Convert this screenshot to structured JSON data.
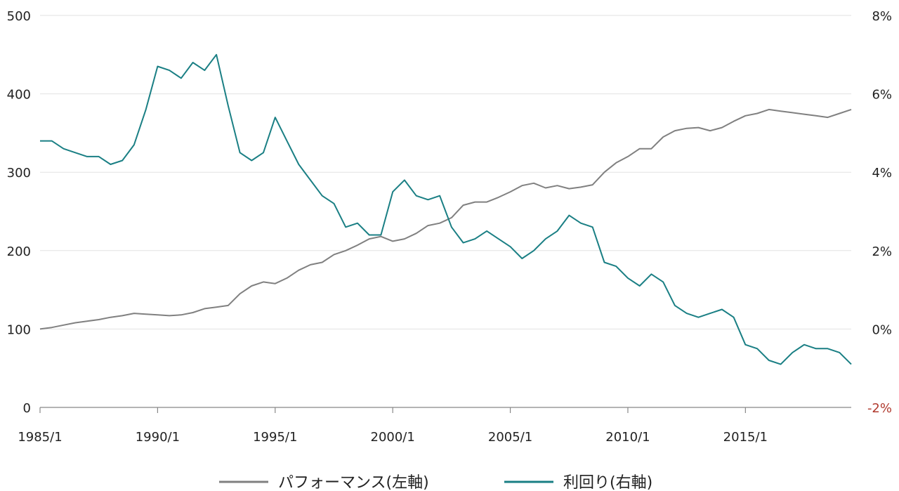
{
  "chart_data": {
    "type": "line",
    "xlabel": "",
    "ylabel": "",
    "x_range": [
      1985.0,
      2019.5
    ],
    "x_ticks": [
      "1985/1",
      "1990/1",
      "1995/1",
      "2000/1",
      "2005/1",
      "2010/1",
      "2015/1"
    ],
    "x_tick_values": [
      1985,
      1990,
      1995,
      2000,
      2005,
      2010,
      2015
    ],
    "y_left": {
      "range": [
        0,
        500
      ],
      "ticks": [
        "0",
        "100",
        "200",
        "300",
        "400",
        "500"
      ],
      "tick_values": [
        0,
        100,
        200,
        300,
        400,
        500
      ]
    },
    "y_right": {
      "range": [
        -2,
        8
      ],
      "ticks": [
        "-2%",
        "0%",
        "2%",
        "4%",
        "6%",
        "8%"
      ],
      "tick_values": [
        -2,
        0,
        2,
        4,
        6,
        8
      ],
      "tick_colors": [
        "#b03a2e",
        "#222222",
        "#222222",
        "#222222",
        "#222222",
        "#222222"
      ]
    },
    "grid": "horizontal",
    "legend_position": "bottom",
    "series": [
      {
        "name": "パフォーマンス(左軸)",
        "axis": "left",
        "color": "#808080",
        "x": [
          1985.0,
          1985.5,
          1986.0,
          1986.5,
          1987.0,
          1987.5,
          1988.0,
          1988.5,
          1989.0,
          1989.5,
          1990.0,
          1990.5,
          1991.0,
          1991.5,
          1992.0,
          1992.5,
          1993.0,
          1993.5,
          1994.0,
          1994.5,
          1995.0,
          1995.5,
          1996.0,
          1996.5,
          1997.0,
          1997.5,
          1998.0,
          1998.5,
          1999.0,
          1999.5,
          2000.0,
          2000.5,
          2001.0,
          2001.5,
          2002.0,
          2002.5,
          2003.0,
          2003.5,
          2004.0,
          2004.5,
          2005.0,
          2005.5,
          2006.0,
          2006.5,
          2007.0,
          2007.5,
          2008.0,
          2008.5,
          2009.0,
          2009.5,
          2010.0,
          2010.5,
          2011.0,
          2011.5,
          2012.0,
          2012.5,
          2013.0,
          2013.5,
          2014.0,
          2014.5,
          2015.0,
          2015.5,
          2016.0,
          2016.5,
          2017.0,
          2017.5,
          2018.0,
          2018.5,
          2019.0,
          2019.5
        ],
        "values": [
          100,
          102,
          105,
          108,
          110,
          112,
          115,
          117,
          120,
          119,
          118,
          117,
          118,
          121,
          126,
          128,
          130,
          145,
          155,
          160,
          158,
          165,
          175,
          182,
          185,
          195,
          200,
          207,
          215,
          218,
          212,
          215,
          222,
          232,
          235,
          242,
          258,
          262,
          262,
          268,
          275,
          283,
          286,
          280,
          283,
          279,
          281,
          284,
          300,
          312,
          320,
          330,
          330,
          345,
          353,
          356,
          357,
          353,
          357,
          365,
          372,
          375,
          380,
          378,
          376,
          374,
          372,
          370,
          375,
          380
        ]
      },
      {
        "name": "利回り(右軸)",
        "axis": "right",
        "color": "#1a7f84",
        "x": [
          1985.0,
          1985.5,
          1986.0,
          1986.5,
          1987.0,
          1987.5,
          1988.0,
          1988.5,
          1989.0,
          1989.5,
          1990.0,
          1990.5,
          1991.0,
          1991.5,
          1992.0,
          1992.5,
          1993.0,
          1993.5,
          1994.0,
          1994.5,
          1995.0,
          1995.5,
          1996.0,
          1996.5,
          1997.0,
          1997.5,
          1998.0,
          1998.5,
          1999.0,
          1999.5,
          2000.0,
          2000.5,
          2001.0,
          2001.5,
          2002.0,
          2002.5,
          2003.0,
          2003.5,
          2004.0,
          2004.5,
          2005.0,
          2005.5,
          2006.0,
          2006.5,
          2007.0,
          2007.5,
          2008.0,
          2008.5,
          2009.0,
          2009.5,
          2010.0,
          2010.5,
          2011.0,
          2011.5,
          2012.0,
          2012.5,
          2013.0,
          2013.5,
          2014.0,
          2014.5,
          2015.0,
          2015.5,
          2016.0,
          2016.5,
          2017.0,
          2017.5,
          2018.0,
          2018.5,
          2019.0,
          2019.5
        ],
        "values": [
          4.8,
          4.8,
          4.6,
          4.5,
          4.4,
          4.4,
          4.2,
          4.3,
          4.7,
          5.6,
          6.7,
          6.6,
          6.4,
          6.8,
          6.6,
          7.0,
          5.7,
          4.5,
          4.3,
          4.5,
          5.4,
          4.8,
          4.2,
          3.8,
          3.4,
          3.2,
          2.6,
          2.7,
          2.4,
          2.4,
          3.5,
          3.8,
          3.4,
          3.3,
          3.4,
          2.6,
          2.2,
          2.3,
          2.5,
          2.3,
          2.1,
          1.8,
          2.0,
          2.3,
          2.5,
          2.9,
          2.7,
          2.6,
          1.7,
          1.6,
          1.3,
          1.1,
          1.4,
          1.2,
          0.6,
          0.4,
          0.3,
          0.4,
          0.5,
          0.3,
          -0.4,
          -0.5,
          -0.8,
          -0.9,
          -0.6,
          -0.4,
          -0.5,
          -0.5,
          -0.6,
          -0.9
        ]
      }
    ]
  }
}
